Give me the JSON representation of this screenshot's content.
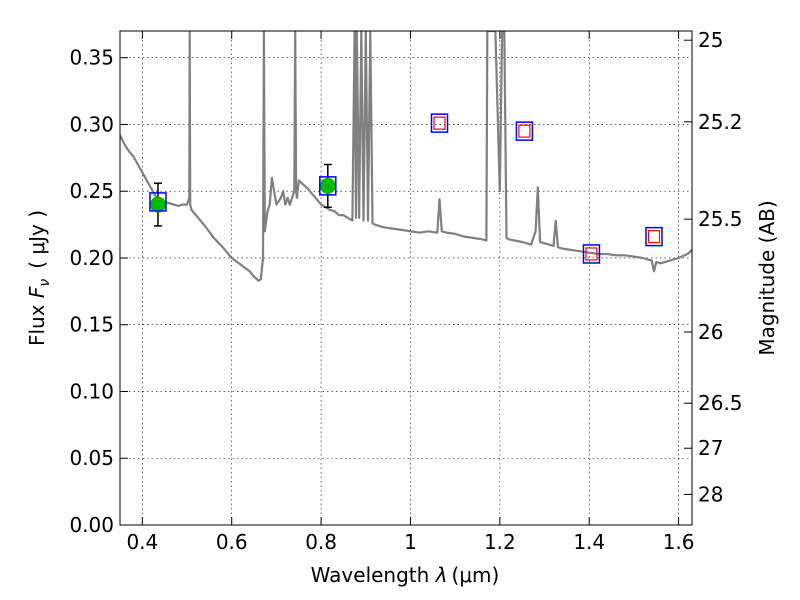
{
  "chart_data": {
    "type": "line",
    "xlabel": "Wavelength  λ (μm)",
    "ylabel": "Flux  F_ν  ( μJy )",
    "ylabel_parts": {
      "prefix": "Flux  ",
      "symbol": "F",
      "subscript": "ν",
      "unit": "( μJy )"
    },
    "xlabel_parts": {
      "text": "Wavelength  ",
      "symbol": "λ",
      "unit": "(μm)"
    },
    "y2label": "Magnitude (AB)",
    "xlim": [
      0.35,
      1.63
    ],
    "ylim": [
      0.0,
      0.37
    ],
    "xticks": [
      0.4,
      0.6,
      0.8,
      1.0,
      1.2,
      1.4,
      1.6
    ],
    "xtick_labels": [
      "0.4",
      "0.6",
      "0.8",
      "1",
      "1.2",
      "1.4",
      "1.6"
    ],
    "yticks": [
      0.0,
      0.05,
      0.1,
      0.15,
      0.2,
      0.25,
      0.3,
      0.35
    ],
    "ytick_labels": [
      "0.00",
      "0.05",
      "0.10",
      "0.15",
      "0.20",
      "0.25",
      "0.30",
      "0.35"
    ],
    "y2ticks": [
      {
        "label": "25",
        "flux": 0.3631
      },
      {
        "label": "25.2",
        "flux": 0.302
      },
      {
        "label": "25.5",
        "flux": 0.2291
      },
      {
        "label": "26",
        "flux": 0.1445
      },
      {
        "label": "26.5",
        "flux": 0.0912
      },
      {
        "label": "27",
        "flux": 0.0575
      },
      {
        "label": "28",
        "flux": 0.0229
      }
    ],
    "grid": true,
    "colors": {
      "model": "#808080",
      "observed": "#00bb00",
      "errorbar": "#000000",
      "model_photometry": "#0000ff",
      "synthetic": "#ff0000"
    },
    "series": [
      {
        "style": "model-spectrum",
        "x": [
          0.35,
          0.36,
          0.37,
          0.38,
          0.39,
          0.4,
          0.41,
          0.42,
          0.43,
          0.44,
          0.45,
          0.46,
          0.47,
          0.48,
          0.49,
          0.5,
          0.505,
          0.506,
          0.507,
          0.51,
          0.52,
          0.54,
          0.56,
          0.58,
          0.6,
          0.62,
          0.64,
          0.65,
          0.66,
          0.665,
          0.67,
          0.672,
          0.674,
          0.676,
          0.678,
          0.68,
          0.685,
          0.69,
          0.7,
          0.71,
          0.715,
          0.72,
          0.725,
          0.73,
          0.74,
          0.742,
          0.744,
          0.746,
          0.75,
          0.76,
          0.77,
          0.78,
          0.79,
          0.8,
          0.81,
          0.82,
          0.83,
          0.84,
          0.85,
          0.86,
          0.87,
          0.875,
          0.878,
          0.88,
          0.885,
          0.89,
          0.895,
          0.9,
          0.905,
          0.91,
          0.915,
          0.92,
          0.94,
          0.96,
          0.98,
          1.0,
          1.02,
          1.04,
          1.06,
          1.065,
          1.07,
          1.08,
          1.1,
          1.12,
          1.14,
          1.16,
          1.17,
          1.172,
          1.19,
          1.2,
          1.205,
          1.21,
          1.215,
          1.22,
          1.25,
          1.27,
          1.28,
          1.285,
          1.29,
          1.3,
          1.31,
          1.32,
          1.325,
          1.33,
          1.34,
          1.36,
          1.38,
          1.4,
          1.42,
          1.44,
          1.46,
          1.48,
          1.5,
          1.52,
          1.54,
          1.545,
          1.55,
          1.56,
          1.58,
          1.6,
          1.62,
          1.63
        ],
        "y": [
          0.292,
          0.285,
          0.28,
          0.276,
          0.27,
          0.264,
          0.258,
          0.252,
          0.246,
          0.243,
          0.242,
          0.241,
          0.24,
          0.239,
          0.24,
          0.24,
          0.245,
          0.37,
          0.24,
          0.236,
          0.232,
          0.224,
          0.215,
          0.208,
          0.2,
          0.195,
          0.19,
          0.186,
          0.183,
          0.184,
          0.2,
          0.37,
          0.22,
          0.225,
          0.23,
          0.235,
          0.24,
          0.26,
          0.24,
          0.245,
          0.25,
          0.24,
          0.245,
          0.24,
          0.25,
          0.37,
          0.25,
          0.245,
          0.258,
          0.255,
          0.252,
          0.248,
          0.244,
          0.24,
          0.238,
          0.236,
          0.235,
          0.232,
          0.232,
          0.23,
          0.228,
          0.37,
          0.23,
          0.37,
          0.23,
          0.37,
          0.228,
          0.37,
          0.228,
          0.37,
          0.226,
          0.225,
          0.223,
          0.222,
          0.221,
          0.22,
          0.219,
          0.22,
          0.219,
          0.244,
          0.22,
          0.219,
          0.218,
          0.216,
          0.215,
          0.214,
          0.213,
          0.37,
          0.37,
          0.25,
          0.37,
          0.37,
          0.215,
          0.214,
          0.212,
          0.21,
          0.22,
          0.253,
          0.212,
          0.211,
          0.21,
          0.209,
          0.228,
          0.208,
          0.207,
          0.206,
          0.205,
          0.204,
          0.203,
          0.203,
          0.202,
          0.202,
          0.201,
          0.2,
          0.198,
          0.19,
          0.197,
          0.196,
          0.198,
          0.2,
          0.203,
          0.206
        ]
      },
      {
        "style": "observed",
        "x": [
          0.435,
          0.815
        ],
        "y": [
          0.24,
          0.254
        ],
        "yerr": [
          0.016,
          0.016
        ]
      },
      {
        "style": "model-photometry",
        "x": [
          0.435,
          0.815,
          1.065,
          1.255,
          1.405,
          1.545
        ],
        "y": [
          0.242,
          0.254,
          0.301,
          0.295,
          0.203,
          0.216
        ]
      },
      {
        "style": "synthetic-photometry",
        "x": [
          1.065,
          1.255,
          1.405,
          1.545
        ],
        "y": [
          0.301,
          0.295,
          0.203,
          0.216
        ]
      }
    ]
  }
}
